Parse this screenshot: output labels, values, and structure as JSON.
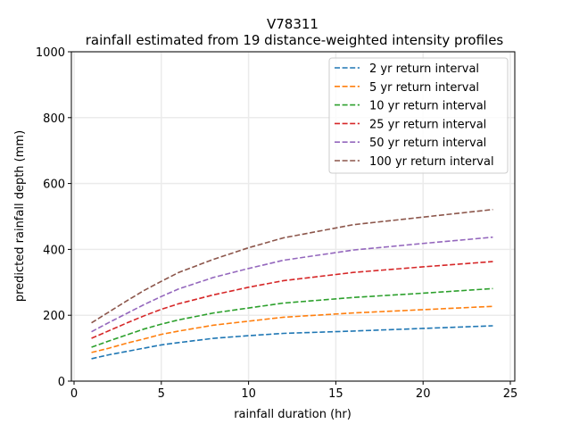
{
  "chart_data": {
    "type": "line",
    "title": "V78311",
    "subtitle": "rainfall estimated from 19 distance-weighted intensity profiles",
    "xlabel": "rainfall duration (hr)",
    "ylabel": "predicted rainfall depth (mm)",
    "xlim": [
      0,
      25.2
    ],
    "ylim": [
      0,
      1000
    ],
    "xticks": [
      0,
      5,
      10,
      15,
      20,
      25
    ],
    "yticks": [
      0,
      200,
      400,
      600,
      800,
      1000
    ],
    "grid": true,
    "legend": "top-right",
    "line_style": "dashed",
    "x": [
      1,
      2,
      3,
      4,
      5,
      6,
      8,
      10,
      12,
      16,
      20,
      24
    ],
    "series": [
      {
        "name": "2 yr return interval",
        "color": "#1f77b4",
        "values": [
          68,
          80,
          90,
          100,
          110,
          117,
          130,
          138,
          145,
          152,
          160,
          168
        ]
      },
      {
        "name": "5 yr return interval",
        "color": "#ff7f0e",
        "values": [
          87,
          100,
          115,
          128,
          142,
          152,
          170,
          182,
          194,
          207,
          217,
          227
        ]
      },
      {
        "name": "10 yr return interval",
        "color": "#2ca02c",
        "values": [
          103,
          122,
          140,
          158,
          173,
          186,
          207,
          222,
          237,
          254,
          267,
          281
        ]
      },
      {
        "name": "25 yr return interval",
        "color": "#d62728",
        "values": [
          130,
          153,
          176,
          198,
          218,
          235,
          262,
          285,
          305,
          330,
          347,
          363
        ]
      },
      {
        "name": "50 yr return interval",
        "color": "#9467bd",
        "values": [
          150,
          178,
          205,
          232,
          257,
          280,
          315,
          342,
          367,
          398,
          418,
          437
        ]
      },
      {
        "name": "100 yr return interval",
        "color": "#8c564b",
        "values": [
          177,
          210,
          243,
          275,
          303,
          330,
          370,
          405,
          435,
          475,
          498,
          521
        ]
      }
    ]
  }
}
